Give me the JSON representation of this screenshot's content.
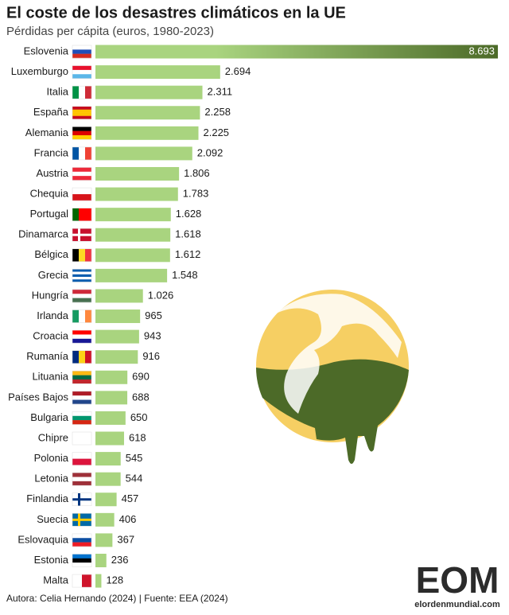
{
  "chart_data": {
    "type": "bar",
    "orientation": "horizontal",
    "title": "El coste de los desastres climáticos en la UE",
    "subtitle": "Pérdidas per cápita (euros, 1980-2023)",
    "source": "Autora: Celia Hernando (2024) | Fuente: EEA (2024)",
    "logo_text": "EOM",
    "logo_url": "elordenmundial.com",
    "color": "#a9d47f",
    "color_end": "#4c6a28",
    "categories": [
      "Eslovenia",
      "Luxemburgo",
      "Italia",
      "España",
      "Alemania",
      "Francia",
      "Austria",
      "Chequia",
      "Portugal",
      "Dinamarca",
      "Bélgica",
      "Grecia",
      "Hungría",
      "Irlanda",
      "Croacia",
      "Rumanía",
      "Lituania",
      "Países Bajos",
      "Bulgaria",
      "Chipre",
      "Polonia",
      "Letonia",
      "Finlandia",
      "Suecia",
      "Eslovaquia",
      "Estonia",
      "Malta"
    ],
    "values": [
      8693,
      2694,
      2311,
      2258,
      2225,
      2092,
      1806,
      1783,
      1628,
      1618,
      1612,
      1548,
      1026,
      965,
      943,
      916,
      690,
      688,
      650,
      618,
      545,
      544,
      457,
      406,
      367,
      236,
      128
    ],
    "value_labels": [
      "8.693",
      "2.694",
      "2.311",
      "2.258",
      "2.225",
      "2.092",
      "1.806",
      "1.783",
      "1.628",
      "1.618",
      "1.612",
      "1.548",
      "1.026",
      "965",
      "943",
      "916",
      "690",
      "688",
      "650",
      "618",
      "545",
      "544",
      "457",
      "406",
      "367",
      "236",
      "128"
    ]
  }
}
